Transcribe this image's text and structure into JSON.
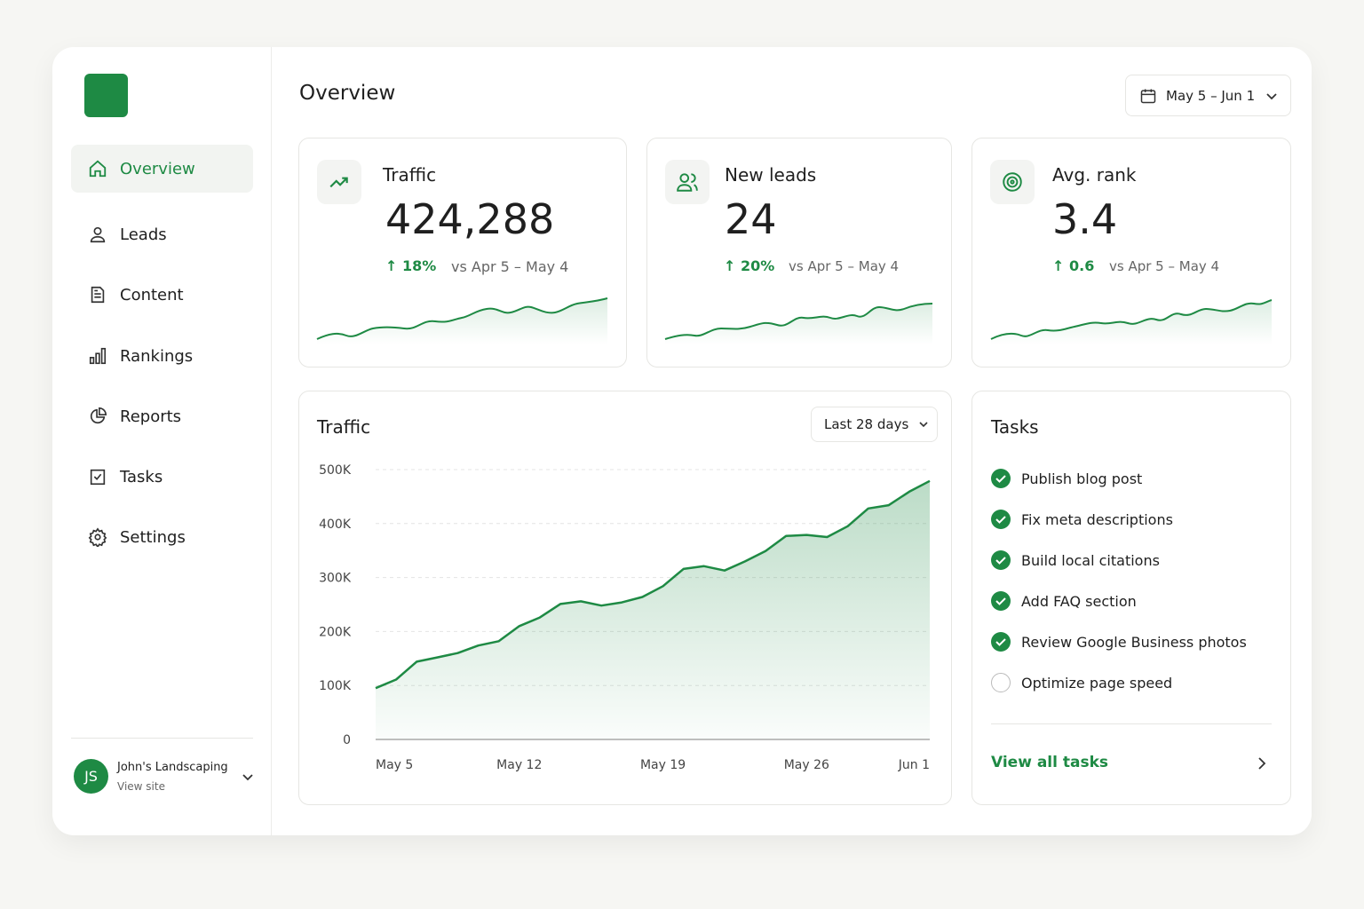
{
  "sidebar": {
    "nav": [
      "Overview",
      "Leads",
      "Content",
      "Rankings",
      "Reports",
      "Tasks",
      "Settings"
    ],
    "account": {
      "initials": "JS",
      "name": "John's Landscaping",
      "link": "View site"
    }
  },
  "header": {
    "title": "Overview",
    "date_range": "May 5 – Jun 1"
  },
  "kpis": [
    {
      "label": "Traffic",
      "value": "424,288",
      "change": "18%",
      "comparison": "vs Apr 5 – May 4"
    },
    {
      "label": "New leads",
      "value": "24",
      "change": "20%",
      "comparison": "vs Apr 5 – May 4"
    },
    {
      "label": "Avg. rank",
      "value": "3.4",
      "change": "0.6",
      "comparison": "vs Apr 5 – May 4"
    }
  ],
  "traffic_panel": {
    "range_select": "Last 28 days"
  },
  "chart_data": {
    "type": "area",
    "title": "Traffic",
    "color": "#1e8a44",
    "categories": [
      "May 5",
      null,
      null,
      null,
      null,
      null,
      null,
      "May 12",
      null,
      null,
      null,
      null,
      null,
      null,
      "May 19",
      null,
      null,
      null,
      null,
      null,
      null,
      "May 26",
      null,
      null,
      null,
      null,
      null,
      "Jun 1"
    ],
    "values": [
      95000,
      111000,
      144000,
      152000,
      160000,
      174000,
      182000,
      210000,
      226000,
      251000,
      256000,
      248000,
      254000,
      264000,
      284000,
      316000,
      321000,
      313000,
      330000,
      349000,
      377000,
      379000,
      375000,
      395000,
      428000,
      434000,
      459000,
      479000
    ],
    "ylim": [
      0,
      500000
    ],
    "yticks": [
      0,
      {
        "value": 100000,
        "label": "100K"
      },
      {
        "value": 200000,
        "label": "200K"
      },
      {
        "value": 300000,
        "label": "300K"
      },
      {
        "value": 400000,
        "label": "400K"
      },
      {
        "value": 500000,
        "label": "500K"
      }
    ],
    "grid": true
  },
  "tasks": {
    "title": "Tasks",
    "items": [
      {
        "label": "Publish blog post",
        "done": true
      },
      {
        "label": "Fix meta descriptions",
        "done": true
      },
      {
        "label": "Build local citations",
        "done": true
      },
      {
        "label": "Add FAQ section",
        "done": true
      },
      {
        "label": "Review Google Business photos",
        "done": true
      },
      {
        "label": "Optimize page speed",
        "done": false
      }
    ],
    "link": "View all tasks"
  }
}
